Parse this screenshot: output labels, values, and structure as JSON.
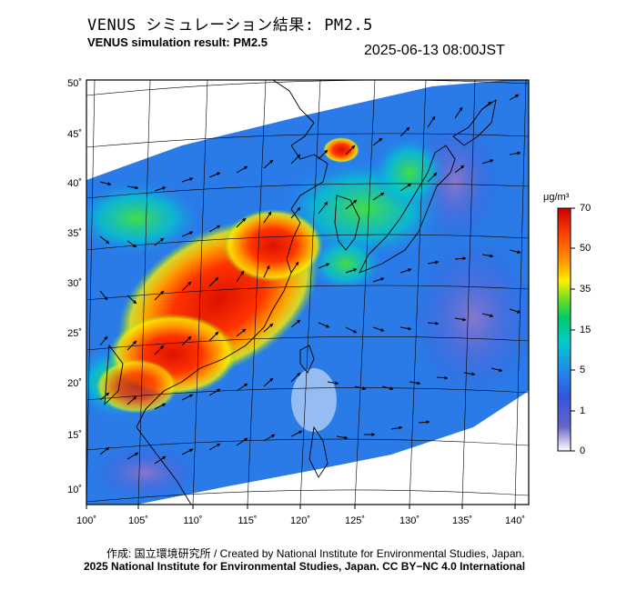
{
  "title_jp": "VENUS シミュレーション結果: PM2.5",
  "title_en": "VENUS simulation result: PM2.5",
  "timestamp": "2025-06-13 08:00JST",
  "map": {
    "lat_ticks": [
      "50˚",
      "45˚",
      "40˚",
      "35˚",
      "30˚",
      "25˚",
      "20˚",
      "15˚",
      "10˚"
    ],
    "lon_ticks": [
      "100˚",
      "105˚",
      "110˚",
      "115˚",
      "120˚",
      "125˚",
      "130˚",
      "135˚",
      "140˚"
    ]
  },
  "colorbar": {
    "unit": "μg/m³",
    "labels": [
      "70",
      "50",
      "35",
      "15",
      "5",
      "1",
      "0"
    ],
    "colors": [
      "#cc0000",
      "#ff4400",
      "#ff9900",
      "#ffee00",
      "#66dd22",
      "#00cc66",
      "#00cccc",
      "#2288ee",
      "#3355dd",
      "#6666cc",
      "#ffffff"
    ]
  },
  "credits": {
    "line1": "作成: 国立環境研究所 / Created by National Institute for Environmental Studies, Japan.",
    "line2": "2025 National Institute for Environmental Studies, Japan. CC BY−NC 4.0 International"
  }
}
